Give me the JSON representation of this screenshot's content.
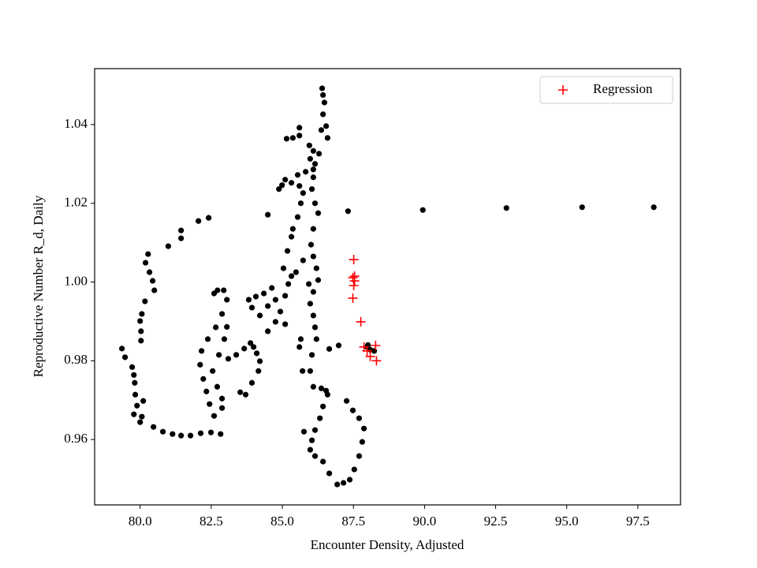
{
  "chart_data": {
    "type": "scatter",
    "xlabel": "Encounter Density, Adjusted",
    "ylabel": "Reproductive Number R_d, Daily",
    "xlim": [
      78.4,
      99.0
    ],
    "ylim": [
      0.9434,
      1.0542
    ],
    "xticks": [
      {
        "value": 80,
        "label": "80.0"
      },
      {
        "value": 82.5,
        "label": "82.5"
      },
      {
        "value": 85,
        "label": "85.0"
      },
      {
        "value": 87.5,
        "label": "87.5"
      },
      {
        "value": 90,
        "label": "90.0"
      },
      {
        "value": 92.5,
        "label": "92.5"
      },
      {
        "value": 95,
        "label": "95.0"
      },
      {
        "value": 97.5,
        "label": "97.5"
      }
    ],
    "yticks": [
      0.96,
      0.98,
      {
        "value": 1,
        "label": "1.00"
      },
      1.02,
      1.04
    ],
    "legend": "upper right",
    "series": [
      {
        "color": "#000000",
        "marker": "o",
        "x": [
          87.31,
          89.94,
          92.88,
          95.54,
          98.06,
          82.41,
          82.05,
          81.44,
          81.44,
          80.99,
          80.28,
          80.19,
          80.33,
          80.44,
          80.5,
          80.17,
          80.06,
          80.0,
          80.03,
          80.03,
          79.36,
          79.47,
          79.72,
          79.78,
          79.81,
          79.83,
          79.89,
          79.78,
          80.06,
          80.0,
          80.11,
          80.47,
          80.8,
          81.14,
          81.44,
          81.77,
          82.13,
          82.49,
          82.83,
          82.6,
          82.44,
          82.33,
          82.22,
          82.11,
          82.16,
          82.38,
          82.66,
          82.88,
          83.05,
          82.94,
          82.72,
          82.6,
          83.05,
          82.96,
          82.77,
          82.55,
          82.71,
          82.88,
          82.88,
          83.1,
          83.38,
          83.66,
          83.88,
          83.99,
          84.1,
          84.21,
          84.16,
          83.93,
          83.71,
          83.52,
          83.82,
          84.07,
          84.35,
          84.63,
          84.76,
          84.49,
          83.93,
          84.21,
          84.49,
          84.76,
          84.93,
          85.1,
          85.21,
          85.04,
          85.18,
          85.32,
          85.37,
          85.54,
          85.65,
          85.73,
          85.6,
          85.32,
          84.99,
          84.88,
          85.1,
          85.54,
          85.82,
          86.09,
          85.98,
          86.09,
          85.95,
          85.6,
          85.37,
          85.15,
          85.6,
          86.4,
          86.43,
          86.48,
          86.43,
          86.54,
          86.59,
          86.37,
          86.29,
          86.15,
          86.09,
          86.04,
          86.15,
          86.26,
          86.09,
          86.01,
          86.09,
          86.2,
          86.26,
          86.09,
          85.98,
          86.09,
          86.15,
          86.2,
          86.04,
          85.98,
          86.09,
          86.37,
          86.54,
          86.59,
          86.43,
          86.32,
          86.15,
          86.04,
          85.98,
          86.15,
          86.43,
          86.65,
          86.93,
          87.15,
          87.37,
          87.53,
          87.7,
          87.81,
          87.87,
          87.7,
          87.48,
          87.26,
          85.76,
          85.71,
          85.6,
          85.65,
          86.65,
          86.98,
          85.1,
          85.32,
          85.48,
          85.73,
          85.93,
          84.49,
          87.98,
          88.09,
          88.23,
          88.01
        ],
        "y": [
          1.018,
          1.0183,
          1.0188,
          1.019,
          1.019,
          1.0163,
          1.0155,
          1.0131,
          1.0111,
          1.0091,
          1.0071,
          1.0049,
          1.0025,
          1.0003,
          0.9979,
          0.9951,
          0.9919,
          0.9901,
          0.9875,
          0.9851,
          0.9831,
          0.9809,
          0.9784,
          0.9764,
          0.9744,
          0.9714,
          0.9686,
          0.9664,
          0.9658,
          0.9644,
          0.9698,
          0.9632,
          0.962,
          0.9614,
          0.961,
          0.961,
          0.9616,
          0.9618,
          0.9614,
          0.966,
          0.969,
          0.9722,
          0.9754,
          0.979,
          0.9825,
          0.9855,
          0.9885,
          0.9919,
          0.9955,
          0.9979,
          0.9979,
          0.9971,
          0.9886,
          0.9855,
          0.9815,
          0.9774,
          0.9734,
          0.9704,
          0.968,
          0.9805,
          0.9815,
          0.9831,
          0.9845,
          0.9835,
          0.9819,
          0.9799,
          0.9774,
          0.9744,
          0.9714,
          0.972,
          0.9955,
          0.9963,
          0.9971,
          0.9985,
          0.9955,
          0.9939,
          0.9935,
          0.9915,
          0.9875,
          0.9899,
          0.9925,
          0.9965,
          0.9995,
          1.0035,
          1.0079,
          1.0115,
          1.0135,
          1.0165,
          1.02,
          1.0226,
          1.0244,
          1.0252,
          1.0246,
          1.0236,
          1.026,
          1.0272,
          1.028,
          1.0286,
          1.0313,
          1.0333,
          1.0347,
          1.0372,
          1.0366,
          1.0364,
          1.0392,
          1.0492,
          1.0475,
          1.0456,
          1.0426,
          1.0396,
          1.0366,
          1.0386,
          1.0326,
          1.03,
          1.0266,
          1.0236,
          1.02,
          1.0175,
          1.0135,
          1.0095,
          1.0065,
          1.0035,
          1.0005,
          0.9975,
          0.9945,
          0.9915,
          0.9885,
          0.9855,
          0.9815,
          0.9774,
          0.9734,
          0.973,
          0.9724,
          0.9714,
          0.9684,
          0.9654,
          0.9624,
          0.9598,
          0.9574,
          0.9558,
          0.9544,
          0.9514,
          0.9486,
          0.949,
          0.9498,
          0.9524,
          0.9558,
          0.9594,
          0.9628,
          0.9654,
          0.9674,
          0.9698,
          0.962,
          0.9774,
          0.9835,
          0.9855,
          0.983,
          0.9839,
          0.9893,
          1.0015,
          1.0025,
          1.0055,
          0.9995,
          1.0171,
          0.9835,
          0.9828,
          0.9825,
          0.984
        ]
      },
      {
        "name": "Regression",
        "color": "#ff0000",
        "marker": "+",
        "x": [
          87.51,
          87.54,
          87.48,
          87.54,
          87.51,
          87.48,
          87.76,
          87.87,
          88.09,
          88.28,
          88.31,
          87.98
        ],
        "y": [
          1.0057,
          1.0015,
          1.0011,
          1.0003,
          0.9991,
          0.9959,
          0.9899,
          0.9835,
          0.9811,
          0.9839,
          0.98,
          0.9825
        ]
      }
    ]
  }
}
